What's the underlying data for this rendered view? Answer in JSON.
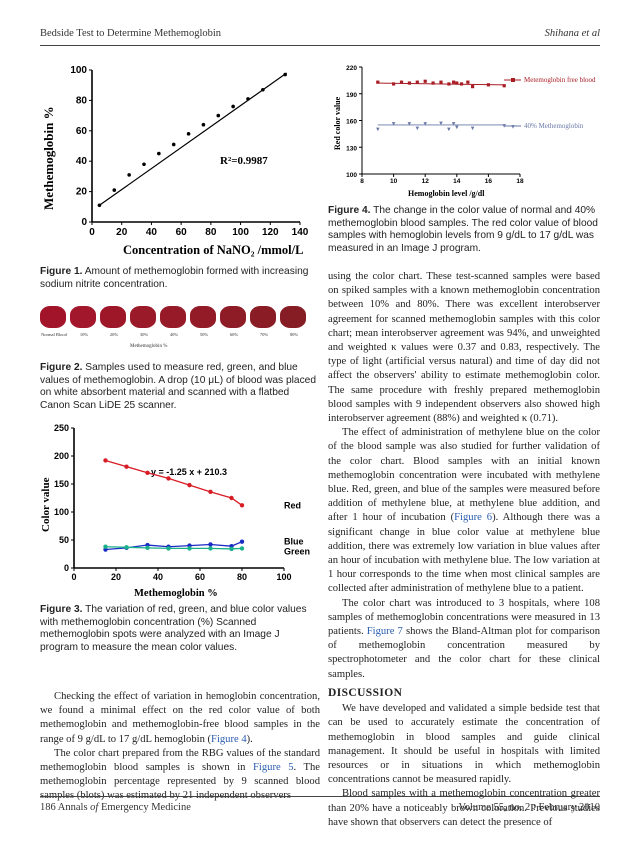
{
  "header": {
    "left": "Bedside Test to Determine Methemoglobin",
    "right": "Shihana et al"
  },
  "footer": {
    "left_pre": "186  Annals ",
    "left_of": "of",
    "left_post": " Emergency Medicine",
    "right": "Volume 55, no. 2  :  February 2010"
  },
  "fig1": {
    "caption_label": "Figure 1.",
    "caption_text": " Amount of methemoglobin formed with increasing sodium nitrite concentration.",
    "ylabel": "Methemoglobin %",
    "xlabel": "Concentration of NaNO₂ /mmol/L",
    "r2": "R²=0.9987"
  },
  "fig2": {
    "caption_label": "Figure 2.",
    "caption_text": " Samples used to measure red, green, and blue values of methemoglobin. A drop (10 μL) of blood was placed on white absorbent material and scanned with a flatbed Canon Scan LiDE 25 scanner.",
    "labels": [
      "Normal Blood",
      "10%",
      "20%",
      "30%",
      "40%",
      "50%",
      "60%",
      "70%",
      "80%"
    ],
    "axis_caption": "Methemoglobin %"
  },
  "fig3": {
    "caption_label": "Figure 3.",
    "caption_text": " The variation of red, green, and blue color values with methemoglobin concentration (%) Scanned methemoglobin spots were analyzed with an Image J program to measure the mean color values.",
    "ylabel": "Color value",
    "xlabel": "Methemoglobin %",
    "equation": "y = -1.25 x + 210.3",
    "series_labels": [
      "Red",
      "Blue",
      "Green"
    ]
  },
  "fig4": {
    "caption_label": "Figure 4.",
    "caption_text": " The change in the color value of normal and 40% methemoglobin blood samples. The red color value of blood samples with hemoglobin levels from 9 g/dL to 17 g/dL was measured in an Image J program.",
    "ylabel": "Red color value",
    "xlabel": "Hemoglobin level /g/dl",
    "legend": [
      "Metemoglobin free blood",
      "40% Methemoglobin"
    ]
  },
  "chart_data": [
    {
      "type": "scatter",
      "title": "",
      "xlabel": "Concentration of NaNO₂ /mmol/L",
      "ylabel": "Methemoglobin %",
      "xlim": [
        0,
        140
      ],
      "ylim": [
        0,
        100
      ],
      "xticks": [
        0,
        20,
        40,
        60,
        80,
        100,
        120,
        140
      ],
      "yticks": [
        0,
        20,
        40,
        60,
        80,
        100
      ],
      "annotation": "R²=0.9987",
      "series": [
        {
          "x": [
            5,
            15,
            25,
            35,
            45,
            55,
            65,
            75,
            85,
            95,
            105,
            115,
            130
          ],
          "y": [
            11,
            21,
            31,
            38,
            45,
            51,
            58,
            64,
            70,
            76,
            81,
            87,
            97
          ]
        }
      ],
      "fit_line": {
        "x": [
          5,
          131
        ],
        "y": [
          11,
          98
        ]
      }
    },
    {
      "type": "line",
      "title": "",
      "xlabel": "Methemoglobin %",
      "ylabel": "Color value",
      "xlim": [
        0,
        100
      ],
      "ylim": [
        0,
        250
      ],
      "xticks": [
        0,
        20,
        40,
        60,
        80,
        100
      ],
      "yticks": [
        0,
        50,
        100,
        150,
        200,
        250
      ],
      "annotation": "y = -1.25 x + 210.3",
      "series": [
        {
          "name": "Red",
          "color": "#d81c24",
          "x": [
            15,
            25,
            35,
            45,
            55,
            65,
            75,
            80
          ],
          "y": [
            192,
            181,
            170,
            160,
            148,
            136,
            125,
            112
          ]
        },
        {
          "name": "Blue",
          "color": "#1a2cc4",
          "x": [
            15,
            25,
            35,
            45,
            55,
            65,
            75,
            80
          ],
          "y": [
            33,
            36,
            41,
            38,
            40,
            42,
            39,
            47
          ]
        },
        {
          "name": "Green",
          "color": "#19b08a",
          "x": [
            15,
            25,
            35,
            45,
            55,
            65,
            75,
            80
          ],
          "y": [
            38,
            37,
            36,
            35,
            35,
            35,
            34,
            35
          ]
        }
      ]
    },
    {
      "type": "scatter",
      "title": "",
      "xlabel": "Hemoglobin level /g/dl",
      "ylabel": "Red color value",
      "xlim": [
        8,
        18
      ],
      "ylim": [
        100,
        220
      ],
      "xticks": [
        8,
        10,
        12,
        14,
        16,
        18
      ],
      "yticks": [
        100,
        130,
        160,
        190,
        220
      ],
      "series": [
        {
          "name": "Metemoglobin free blood",
          "color": "#a81c24",
          "x": [
            9,
            10,
            10.5,
            11,
            11.5,
            12,
            12.5,
            13,
            13.5,
            13.8,
            14,
            14.3,
            14.7,
            15,
            16,
            17
          ],
          "y": [
            203,
            201,
            203,
            202,
            203,
            204,
            202,
            203,
            201,
            203,
            202,
            201,
            203,
            198,
            200,
            199
          ]
        },
        {
          "name": "40% Methemoglobin",
          "color": "#6a78a8",
          "x": [
            9,
            10,
            11,
            11.5,
            12,
            13,
            13.5,
            13.8,
            14,
            15,
            17
          ],
          "y": [
            151,
            157,
            157,
            152,
            157,
            158,
            151,
            157,
            153,
            152,
            155
          ]
        }
      ]
    }
  ],
  "right_col": {
    "p1": "using the color chart. These test-scanned samples were based on spiked samples with a known methemoglobin concentration between 10% and 80%. There was excellent interobserver agreement for scanned methemoglobin samples with this color chart; mean interobserver agreement was 94%, and unweighted and weighted κ values were 0.37 and 0.83, respectively. The type of light (artificial versus natural) and time of day did not affect the observers' ability to estimate methemoglobin color. The same procedure with freshly prepared methemoglobin blood samples with 9 independent observers also showed high interobserver agreement (88%) and weighted κ (0.71).",
    "p2_a": "The effect of administration of methylene blue on the color of the blood sample was also studied for further validation of the color chart. Blood samples with an initial known methemoglobin concentration were incubated with methylene blue. Red, green, and blue of the samples were measured before addition of methylene blue, at methylene blue addition, and after 1 hour of incubation (",
    "p2_link": "Figure 6",
    "p2_b": "). Although there was a significant change in blue color value at methylene blue addition, there was extremely low variation in blue values after an hour of incubation with methylene blue. The low variation at 1 hour corresponds to the time when most clinical samples are collected after administration of methylene blue to a patient.",
    "p3_a": "The color chart was introduced to 3 hospitals, where 108 samples of methemoglobin concentrations were measured in 13 patients. ",
    "p3_link": "Figure 7",
    "p3_b": " shows the Bland-Altman plot for comparison of methemoglobin concentration measured by spectrophotometer and the color chart for these clinical samples.",
    "heading": "DISCUSSION",
    "p4": "We have developed and validated a simple bedside test that can be used to accurately estimate the concentration of methemoglobin in blood samples and guide clinical management. It should be useful in hospitals with limited resources or in situations in which methemoglobin concentrations cannot be measured rapidly.",
    "p5": "Blood samples with a methemoglobin concentration greater than 20% have a noticeably brown coloration. Previous studies have shown that observers can detect the presence of"
  },
  "left_col": {
    "p1_a": "Checking the effect of variation in hemoglobin concentration, we found a minimal effect on the red color value of both methemoglobin and methemoglobin-free blood samples in the range of 9 g/dL to 17 g/dL hemoglobin (",
    "p1_link": "Figure 4",
    "p1_b": ").",
    "p2_a": "The color chart prepared from the RBG values of the standard methemoglobin blood samples is shown in ",
    "p2_link": "Figure 5",
    "p2_b": ". The methemoglobin percentage represented by 9 scanned blood samples (blots) was estimated by 21 independent observers"
  }
}
